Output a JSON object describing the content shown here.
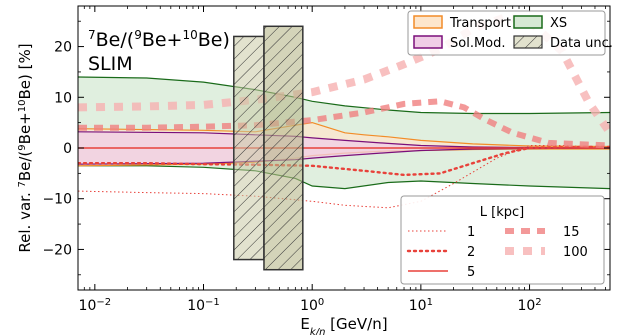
{
  "chart_data": {
    "type": "line",
    "xscale": "log",
    "xlim": [
      0.007,
      550
    ],
    "ylim": [
      -28,
      28
    ],
    "x_ticks": [
      0.01,
      0.1,
      1,
      10,
      100
    ],
    "x_tick_labels": [
      "10^-2",
      "10^-1",
      "10^0",
      "10^1",
      "10^2"
    ],
    "y_ticks": [
      -20,
      -10,
      0,
      10,
      20
    ],
    "y_tick_labels": [
      "−20",
      "−10",
      "0",
      "10",
      "20"
    ],
    "xlabel": {
      "main": "E",
      "sub": "k/n",
      "unit": " [GeV/n]"
    },
    "ylabel": "Rel. var. 7Be/(9Be+10Be) [%]",
    "ylabel_parts": {
      "pre": "Rel. var. ",
      "sup1": "7",
      "mid1": "Be/(",
      "sup2": "9",
      "mid2": "Be+",
      "sup3": "10",
      "post": "Be) [%]"
    },
    "annotation": {
      "line1_parts": {
        "sup1": "7",
        "mid1": "Be/(",
        "sup2": "9",
        "mid2": "Be+",
        "sup3": "10",
        "post": "Be)"
      },
      "line2": "SLIM"
    },
    "grid": false,
    "legend_top": {
      "placement": "top-right",
      "entries": [
        {
          "label": "Transport",
          "kind": "band",
          "fill": "#fde6cc",
          "edge": "#f28c28"
        },
        {
          "label": "XS",
          "kind": "band",
          "fill": "#d6e9d4",
          "edge": "#1a6b1a"
        },
        {
          "label": "Sol.Mod.",
          "kind": "band",
          "fill": "#f0cde6",
          "edge": "#7a0f7a"
        },
        {
          "label": "Data unc.",
          "kind": "hatch",
          "fill": "#c9c9a6",
          "edge": "#333333"
        }
      ]
    },
    "legend_bottom": {
      "placement": "lower-right",
      "title": "L [kpc]",
      "entries": [
        {
          "label": "1",
          "style": "dotted-thin"
        },
        {
          "label": "15",
          "style": "dash-thick"
        },
        {
          "label": "2",
          "style": "dotted"
        },
        {
          "label": "100",
          "style": "dash-thick-light"
        },
        {
          "label": "5",
          "style": "solid"
        }
      ]
    },
    "bands": [
      {
        "name": "XS",
        "fill": "#d6e9d4",
        "edge": "#1a6b1a",
        "x": [
          0.007,
          0.03,
          0.1,
          0.3,
          0.7,
          1,
          2,
          5,
          10,
          30,
          100,
          550
        ],
        "upper": [
          14,
          13.8,
          13,
          11.5,
          10,
          9.2,
          8.3,
          7.5,
          7,
          6.8,
          6.8,
          7.0
        ],
        "lower": [
          -3.5,
          -3.5,
          -3.8,
          -4.5,
          -6.0,
          -7.5,
          -8.0,
          -6.8,
          -6.5,
          -7,
          -7.5,
          -8.0
        ]
      },
      {
        "name": "Transport",
        "fill": "#fde6cc",
        "edge": "#f28c28",
        "x": [
          0.007,
          0.1,
          0.3,
          0.7,
          1,
          2,
          3,
          5,
          10,
          30,
          100,
          550
        ],
        "upper": [
          3.8,
          3.5,
          3.2,
          4.5,
          5.0,
          3.0,
          2.6,
          2.2,
          1.5,
          0.8,
          0.4,
          0.3
        ],
        "lower": [
          -3.5,
          -3.2,
          -2.8,
          -2.0,
          -1.5,
          -1.0,
          -0.8,
          -0.6,
          -0.5,
          -0.3,
          -0.2,
          -0.2
        ]
      },
      {
        "name": "Sol.Mod.",
        "fill": "#f0cde6",
        "edge": "#7a0f7a",
        "x": [
          0.007,
          0.1,
          0.3,
          0.7,
          1,
          2,
          5,
          10,
          30,
          100,
          550
        ],
        "upper": [
          3.2,
          3.0,
          2.6,
          2.3,
          2.0,
          1.5,
          0.9,
          0.5,
          0.2,
          0.1,
          0.0
        ],
        "lower": [
          -3.2,
          -3.0,
          -2.6,
          -2.3,
          -2.0,
          -1.5,
          -0.9,
          -0.5,
          -0.2,
          -0.1,
          0.0
        ]
      }
    ],
    "data_unc_bands": [
      {
        "x_range": [
          0.19,
          0.36
        ],
        "y_range": [
          -22,
          22
        ]
      },
      {
        "x_range": [
          0.36,
          0.82
        ],
        "y_range": [
          -24,
          24
        ]
      }
    ],
    "series": [
      {
        "name": "1",
        "style": "dotted-thin",
        "x": [
          0.007,
          0.03,
          0.1,
          0.3,
          1,
          2,
          5,
          10,
          20,
          50,
          100,
          200,
          550
        ],
        "y": [
          -8.5,
          -8.8,
          -9.0,
          -9.5,
          -10.5,
          -11.3,
          -11.8,
          -10.5,
          -7.0,
          -2.0,
          0.5,
          0.5,
          0.0
        ]
      },
      {
        "name": "2",
        "style": "dotted",
        "x": [
          0.007,
          0.03,
          0.1,
          0.3,
          1,
          3,
          7,
          15,
          30,
          60,
          100,
          300,
          550
        ],
        "y": [
          -3.0,
          -3.0,
          -3.2,
          -3.3,
          -3.5,
          -4.5,
          -5.3,
          -5.0,
          -3.0,
          -1.0,
          0.0,
          0.2,
          0.2
        ]
      },
      {
        "name": "5",
        "style": "solid",
        "x": [
          0.007,
          0.1,
          1,
          5,
          10,
          30,
          100,
          550
        ],
        "y": [
          0.0,
          0.0,
          0.0,
          0.0,
          0.0,
          0.0,
          0.0,
          0.0
        ]
      },
      {
        "name": "15",
        "style": "dash-thick",
        "x": [
          0.007,
          0.03,
          0.1,
          0.3,
          1,
          3,
          7,
          15,
          25,
          40,
          70,
          150,
          550
        ],
        "y": [
          4.0,
          4.0,
          4.2,
          4.5,
          5.5,
          7.0,
          8.7,
          9.2,
          8.0,
          5.5,
          3.0,
          1.0,
          0.5
        ]
      },
      {
        "name": "100",
        "style": "dash-thick-light",
        "x": [
          0.007,
          0.03,
          0.1,
          0.3,
          1,
          3,
          7,
          15,
          30,
          60,
          100,
          200,
          350,
          550
        ],
        "y": [
          8.0,
          8.2,
          8.5,
          9.5,
          11.0,
          13.5,
          16.5,
          19.5,
          23.5,
          25.8,
          25.0,
          19.0,
          9.0,
          3.0
        ]
      }
    ]
  }
}
